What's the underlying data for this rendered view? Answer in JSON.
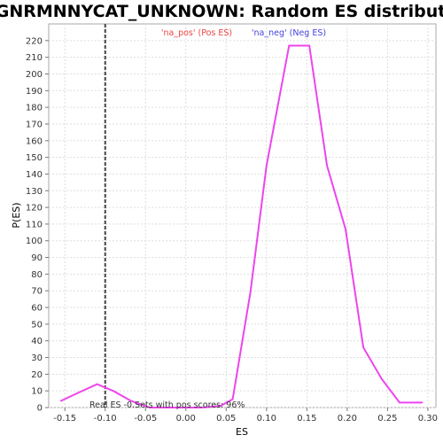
{
  "chart_data": {
    "type": "line",
    "title": "GGGNRMNNYCAT_UNKNOWN: Random ES distribution",
    "xlabel": "ES",
    "ylabel": "P(ES)",
    "xlim": [
      -0.17,
      0.31
    ],
    "ylim": [
      0,
      230
    ],
    "x_ticks": [
      "-0.15",
      "-0.10",
      "-0.05",
      "0.00",
      "0.05",
      "0.10",
      "0.15",
      "0.20",
      "0.25",
      "0.30"
    ],
    "x_tick_values": [
      -0.15,
      -0.1,
      -0.05,
      0.0,
      0.05,
      0.1,
      0.15,
      0.2,
      0.25,
      0.3
    ],
    "y_ticks": [
      "0",
      "10",
      "20",
      "30",
      "40",
      "50",
      "60",
      "70",
      "80",
      "90",
      "100",
      "110",
      "120",
      "130",
      "140",
      "150",
      "160",
      "170",
      "180",
      "190",
      "200",
      "210",
      "220"
    ],
    "y_tick_values": [
      0,
      10,
      20,
      30,
      40,
      50,
      60,
      70,
      80,
      90,
      100,
      110,
      120,
      130,
      140,
      150,
      160,
      170,
      180,
      190,
      200,
      210,
      220
    ],
    "grid": true,
    "series": [
      {
        "color": "#ee44ee",
        "x": [
          -0.155,
          -0.133,
          -0.11,
          -0.09,
          -0.068,
          -0.045,
          -0.023,
          0.0,
          0.02,
          0.043,
          0.058,
          0.08,
          0.1,
          0.128,
          0.153,
          0.175,
          0.198,
          0.22,
          0.243,
          0.265,
          0.293
        ],
        "y": [
          4,
          9,
          14,
          10,
          4,
          0,
          0,
          0,
          0,
          1,
          5,
          69,
          145,
          217,
          217,
          145,
          107,
          36,
          17,
          3,
          3
        ]
      }
    ],
    "reference_line": {
      "x": -0.1,
      "style": "dashed",
      "color": "#444444"
    },
    "legend": {
      "pos_label": "'na_pos' (Pos ES)",
      "pos_color": "#ee4444",
      "neg_label": "'na_neg' (Neg ES)",
      "neg_color": "#4444dd",
      "placement": "top-center"
    },
    "annotation": "Real ES -0.Sets with pos scores: 96%"
  }
}
